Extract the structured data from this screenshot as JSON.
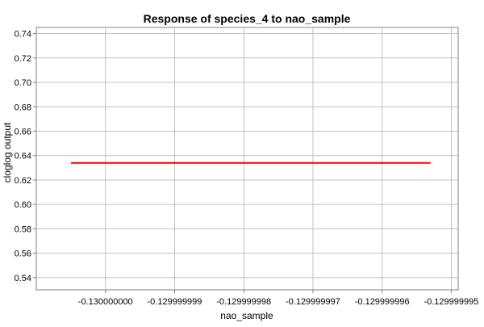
{
  "chart_data": {
    "type": "line",
    "title": "Response of species_4 to nao_sample",
    "xlabel": "nao_sample",
    "ylabel": "cloglog output",
    "xlim": [
      -0.130000001,
      -0.1299999949
    ],
    "ylim": [
      0.53,
      0.745
    ],
    "x_ticks": [
      -0.13,
      -0.129999999,
      -0.129999998,
      -0.129999997,
      -0.129999996,
      -0.129999995
    ],
    "x_tick_labels": [
      "-0.130000000",
      "-0.129999999",
      "-0.129999998",
      "-0.129999997",
      "-0.129999996",
      "-0.129999995"
    ],
    "y_ticks": [
      0.54,
      0.56,
      0.58,
      0.6,
      0.62,
      0.64,
      0.66,
      0.68,
      0.7,
      0.72,
      0.74
    ],
    "y_tick_labels": [
      "0.54",
      "0.56",
      "0.58",
      "0.60",
      "0.62",
      "0.64",
      "0.66",
      "0.68",
      "0.70",
      "0.72",
      "0.74"
    ],
    "grid": true,
    "series": [
      {
        "color": "#ff0000",
        "x": [
          -0.1300000005,
          -0.1299999953
        ],
        "y": [
          0.634,
          0.634
        ]
      }
    ]
  }
}
